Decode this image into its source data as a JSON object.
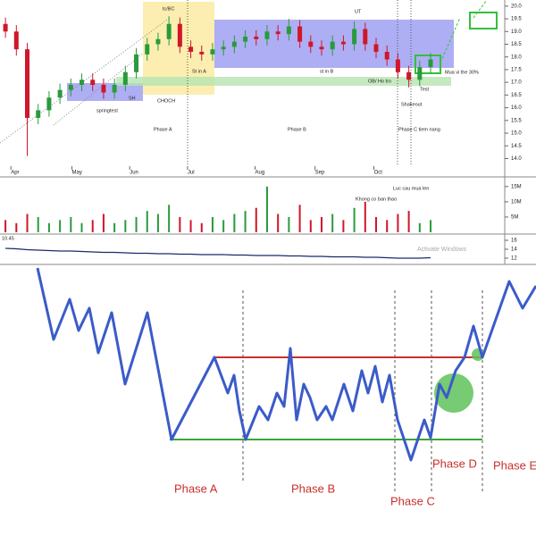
{
  "chart_data": [
    {
      "type": "candlestick",
      "up_color": "#2a9a3c",
      "down_color": "#d0162a",
      "open": [
        19.3,
        19.0,
        18.3,
        15.6,
        15.9,
        16.4,
        16.7,
        16.9,
        17.1,
        16.9,
        16.6,
        16.9,
        17.4,
        18.1,
        18.5,
        18.7,
        19.3,
        18.4,
        18.2,
        18.1,
        18.3,
        18.4,
        18.6,
        18.8,
        18.7,
        19.0,
        18.9,
        19.2,
        18.6,
        18.4,
        18.3,
        18.6,
        18.5,
        19.1,
        18.5,
        18.2,
        17.9,
        17.4,
        17.1,
        17.6
      ],
      "high": [
        19.55,
        19.25,
        18.55,
        16.15,
        16.65,
        16.95,
        17.15,
        17.35,
        17.35,
        17.15,
        17.15,
        17.65,
        18.35,
        18.75,
        18.95,
        19.6,
        19.55,
        18.65,
        18.45,
        18.55,
        18.65,
        18.85,
        19.05,
        19.05,
        19.25,
        19.25,
        19.5,
        19.45,
        18.85,
        18.65,
        18.85,
        18.85,
        19.4,
        19.35,
        18.75,
        18.45,
        18.15,
        17.65,
        17.85,
        18.15
      ],
      "low": [
        18.75,
        18.05,
        14.1,
        15.35,
        15.65,
        16.15,
        16.45,
        16.65,
        16.65,
        16.35,
        16.35,
        16.65,
        17.15,
        17.85,
        18.25,
        18.45,
        18.15,
        17.95,
        17.85,
        17.85,
        18.05,
        18.15,
        18.35,
        18.45,
        18.45,
        18.65,
        18.65,
        18.35,
        18.15,
        18.05,
        18.05,
        18.25,
        18.25,
        18.25,
        17.95,
        17.65,
        17.15,
        16.8,
        16.85,
        17.35
      ],
      "close": [
        19.0,
        18.3,
        15.6,
        15.9,
        16.4,
        16.7,
        16.9,
        17.1,
        16.9,
        16.6,
        16.9,
        17.4,
        18.1,
        18.5,
        18.7,
        19.3,
        18.4,
        18.2,
        18.1,
        18.3,
        18.4,
        18.6,
        18.8,
        18.7,
        19.0,
        18.9,
        19.2,
        18.6,
        18.4,
        18.3,
        18.6,
        18.5,
        19.1,
        18.5,
        18.2,
        17.9,
        17.4,
        17.1,
        17.6,
        17.9
      ],
      "xlim": [
        -0.5,
        45.8
      ],
      "xticks": [
        {
          "value": 0.5,
          "label": "Apr"
        },
        {
          "value": 6.1,
          "label": "May"
        },
        {
          "value": 11.4,
          "label": "Jun"
        },
        {
          "value": 16.7,
          "label": "Jul"
        },
        {
          "value": 22.9,
          "label": "Aug"
        },
        {
          "value": 28.4,
          "label": "Sep"
        },
        {
          "value": 33.8,
          "label": "Oct"
        }
      ],
      "ylim": [
        13.7,
        20.1
      ],
      "yticks": [
        {
          "value": 14,
          "label": "14.0"
        },
        {
          "value": 14.5,
          "label": "14.5"
        },
        {
          "value": 15,
          "label": "15.0"
        },
        {
          "value": 15.5,
          "label": "15.5"
        },
        {
          "value": 16,
          "label": "16.0"
        },
        {
          "value": 16.5,
          "label": "16.5"
        },
        {
          "value": 17,
          "label": "17.0"
        },
        {
          "value": 17.5,
          "label": "17.5"
        },
        {
          "value": 18,
          "label": "18.0"
        },
        {
          "value": 18.5,
          "label": "18.5"
        },
        {
          "value": 19,
          "label": "19.0"
        },
        {
          "value": 19.5,
          "label": "19.5"
        },
        {
          "value": 20,
          "label": "20.0"
        }
      ],
      "annotations": [
        "tc/BC",
        "UT",
        "St in A",
        "st in B",
        "CHOCH",
        "SH",
        "springtest",
        "OB/ Ho tro",
        "Shakeout",
        "Test",
        "Mua vi the 30%",
        "Phase A",
        "Phase B",
        "Phase C tiem nang"
      ]
    },
    {
      "type": "bar",
      "values": [
        4,
        3,
        6,
        5,
        3,
        4,
        5,
        3,
        4,
        6,
        3,
        4,
        5,
        7,
        6,
        9,
        5,
        4,
        3,
        5,
        4,
        6,
        7,
        8,
        15,
        6,
        5,
        9,
        4,
        5,
        6,
        4,
        8,
        10,
        5,
        4,
        6,
        7,
        3,
        4
      ],
      "ylim": [
        0,
        17
      ],
      "yticks": [
        {
          "value": 5,
          "label": "5M"
        },
        {
          "value": 10,
          "label": "10M"
        },
        {
          "value": 15,
          "label": "15M"
        }
      ],
      "annotations": [
        "Khong co ban thao",
        "Luc cau mua len"
      ]
    },
    {
      "type": "line",
      "label": "10.45",
      "color": "#1c2a6b",
      "values": [
        14.2,
        14.1,
        13.9,
        13.8,
        13.7,
        13.6,
        13.6,
        13.5,
        13.4,
        13.3,
        13.3,
        13.2,
        13.1,
        13.1,
        13.0,
        13.0,
        12.9,
        12.9,
        12.8,
        12.8,
        12.8,
        12.7,
        12.7,
        12.6,
        12.6,
        12.6,
        12.5,
        12.5,
        12.4,
        12.4,
        12.3,
        12.3,
        12.3,
        12.2,
        12.2,
        12.1,
        12.0,
        12.0,
        12.0,
        12.1
      ],
      "ylim": [
        11,
        17
      ],
      "yticks": [
        12,
        14,
        16
      ],
      "watermark": "Activate Windows"
    }
  ],
  "diagram": {
    "labels": [
      "Phase A",
      "Phase B",
      "Phase C",
      "Phase D",
      "Phase E"
    ]
  }
}
